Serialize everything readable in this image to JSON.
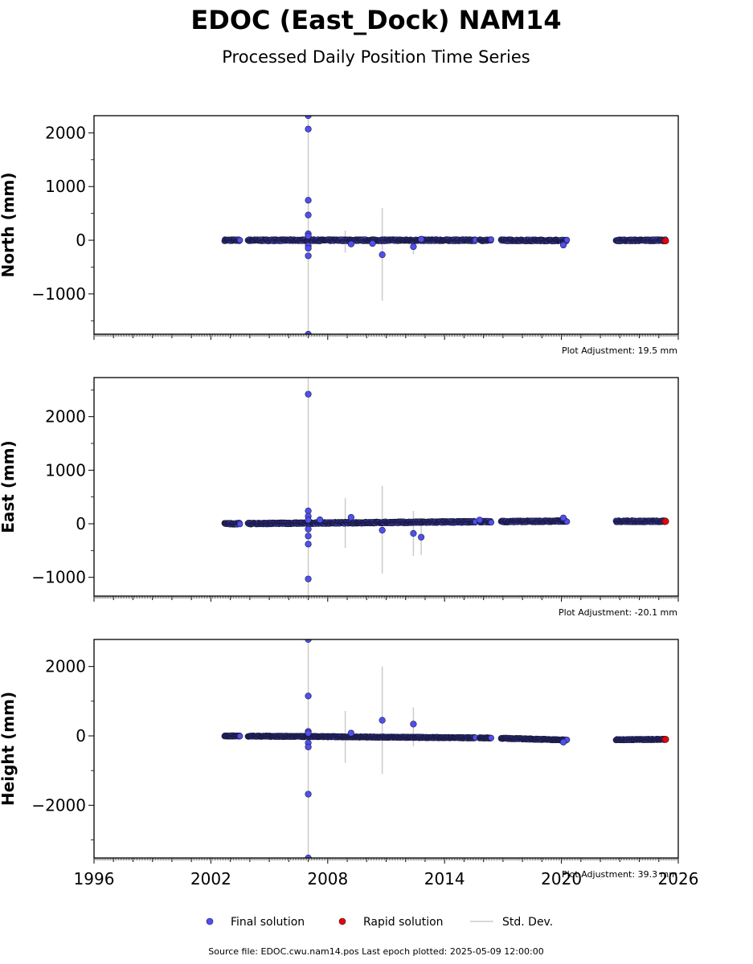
{
  "title": "EDOC (East_Dock) NAM14",
  "subtitle": "Processed Daily Position Time Series",
  "x_tick_labels": [
    "1996",
    "2002",
    "2008",
    "2014",
    "2020",
    "2026"
  ],
  "legend": {
    "final": "Final solution",
    "rapid": "Rapid solution",
    "std": "Std. Dev."
  },
  "footer": "Source file: EDOC.cwu.nam14.pos  Last epoch plotted: 2025-05-09 12:00:00",
  "colors": {
    "final": "#5050ee",
    "rapid": "#ee0000",
    "std": "#cccccc",
    "edge": "#1a1a40"
  },
  "chart_data": [
    {
      "type": "scatter",
      "ylabel": "North (mm)",
      "adjustment": "Plot Adjustment: 19.5 mm",
      "xlim": [
        1996,
        2026
      ],
      "ylim": [
        -1750,
        2320
      ],
      "yticks": [
        2000,
        1000,
        0,
        -1000
      ],
      "ytick_labels": [
        "2000",
        "1000",
        "0",
        "−1000"
      ],
      "data_ranges": [
        [
          2002.7,
          2003.5
        ],
        [
          2003.9,
          2007.0
        ],
        [
          2007.0,
          2015.6
        ],
        [
          2015.8,
          2016.4
        ],
        [
          2016.9,
          2020.3
        ],
        [
          2022.8,
          2025.35
        ]
      ],
      "trend": [
        [
          2002.7,
          0
        ],
        [
          2016.4,
          0
        ],
        [
          2020.3,
          -5
        ],
        [
          2025.35,
          0
        ]
      ],
      "outliers": [
        [
          2007.0,
          2320
        ],
        [
          2007.0,
          2070
        ],
        [
          2007.0,
          745
        ],
        [
          2007.0,
          470
        ],
        [
          2007.0,
          120
        ],
        [
          2007.0,
          80
        ],
        [
          2007.0,
          -100
        ],
        [
          2007.0,
          -150
        ],
        [
          2007.0,
          -290
        ],
        [
          2007.0,
          -1750
        ],
        [
          2009.2,
          -70
        ],
        [
          2010.3,
          -60
        ],
        [
          2010.8,
          -270
        ],
        [
          2012.4,
          -120
        ],
        [
          2012.8,
          20
        ],
        [
          2020.1,
          -90
        ]
      ],
      "std_bars": [
        [
          2007.0,
          -1750,
          2320
        ],
        [
          2008.9,
          -230,
          180
        ],
        [
          2010.8,
          -1130,
          600
        ],
        [
          2012.4,
          -260,
          40
        ]
      ],
      "rapid": [
        [
          2025.3,
          -10
        ],
        [
          2025.35,
          -10
        ]
      ]
    },
    {
      "type": "scatter",
      "ylabel": "East (mm)",
      "adjustment": "Plot Adjustment: -20.1 mm",
      "xlim": [
        1996,
        2026
      ],
      "ylim": [
        -1350,
        2730
      ],
      "yticks": [
        2000,
        1000,
        0,
        -1000
      ],
      "ytick_labels": [
        "2000",
        "1000",
        "0",
        "−1000"
      ],
      "data_ranges": [
        [
          2002.7,
          2003.5
        ],
        [
          2003.9,
          2007.0
        ],
        [
          2007.0,
          2015.6
        ],
        [
          2015.8,
          2016.4
        ],
        [
          2016.9,
          2020.3
        ],
        [
          2022.8,
          2025.35
        ]
      ],
      "trend": [
        [
          2002.7,
          0
        ],
        [
          2016.4,
          40
        ],
        [
          2020.3,
          50
        ],
        [
          2025.35,
          45
        ]
      ],
      "outliers": [
        [
          2007.0,
          2420
        ],
        [
          2007.0,
          240
        ],
        [
          2007.0,
          140
        ],
        [
          2007.0,
          70
        ],
        [
          2007.0,
          -100
        ],
        [
          2007.0,
          -230
        ],
        [
          2007.0,
          -380
        ],
        [
          2007.0,
          -1030
        ],
        [
          2007.6,
          75
        ],
        [
          2009.2,
          120
        ],
        [
          2010.8,
          -120
        ],
        [
          2012.4,
          -180
        ],
        [
          2012.8,
          -250
        ],
        [
          2015.8,
          70
        ],
        [
          2020.1,
          110
        ]
      ],
      "std_bars": [
        [
          2007.0,
          -1350,
          2730
        ],
        [
          2008.9,
          -450,
          480
        ],
        [
          2010.8,
          -930,
          710
        ],
        [
          2012.4,
          -600,
          240
        ],
        [
          2012.8,
          -580,
          20
        ]
      ],
      "rapid": [
        [
          2025.3,
          45
        ],
        [
          2025.35,
          45
        ]
      ]
    },
    {
      "type": "scatter",
      "ylabel": "Height (mm)",
      "adjustment": "Plot Adjustment: 39.3 mm",
      "xlim": [
        1996,
        2026
      ],
      "ylim": [
        -3520,
        2780
      ],
      "yticks": [
        2000,
        0,
        -2000
      ],
      "ytick_labels": [
        "2000",
        "0",
        "−2000"
      ],
      "data_ranges": [
        [
          2002.7,
          2003.5
        ],
        [
          2003.9,
          2007.0
        ],
        [
          2007.0,
          2015.6
        ],
        [
          2015.8,
          2016.4
        ],
        [
          2016.9,
          2020.3
        ],
        [
          2022.8,
          2025.35
        ]
      ],
      "trend": [
        [
          2002.7,
          0
        ],
        [
          2016.4,
          -60
        ],
        [
          2020.3,
          -120
        ],
        [
          2025.35,
          -100
        ]
      ],
      "outliers": [
        [
          2007.0,
          2780
        ],
        [
          2007.0,
          1150
        ],
        [
          2007.0,
          130
        ],
        [
          2007.0,
          80
        ],
        [
          2007.0,
          -200
        ],
        [
          2007.0,
          -320
        ],
        [
          2007.0,
          -1680
        ],
        [
          2007.0,
          -3520
        ],
        [
          2009.2,
          80
        ],
        [
          2010.8,
          450
        ],
        [
          2012.4,
          340
        ],
        [
          2020.1,
          -180
        ]
      ],
      "std_bars": [
        [
          2007.0,
          -3520,
          2780
        ],
        [
          2008.9,
          -780,
          720
        ],
        [
          2010.8,
          -1100,
          2000
        ],
        [
          2012.4,
          -300,
          820
        ]
      ],
      "rapid": [
        [
          2025.3,
          -100
        ],
        [
          2025.35,
          -100
        ]
      ]
    }
  ]
}
